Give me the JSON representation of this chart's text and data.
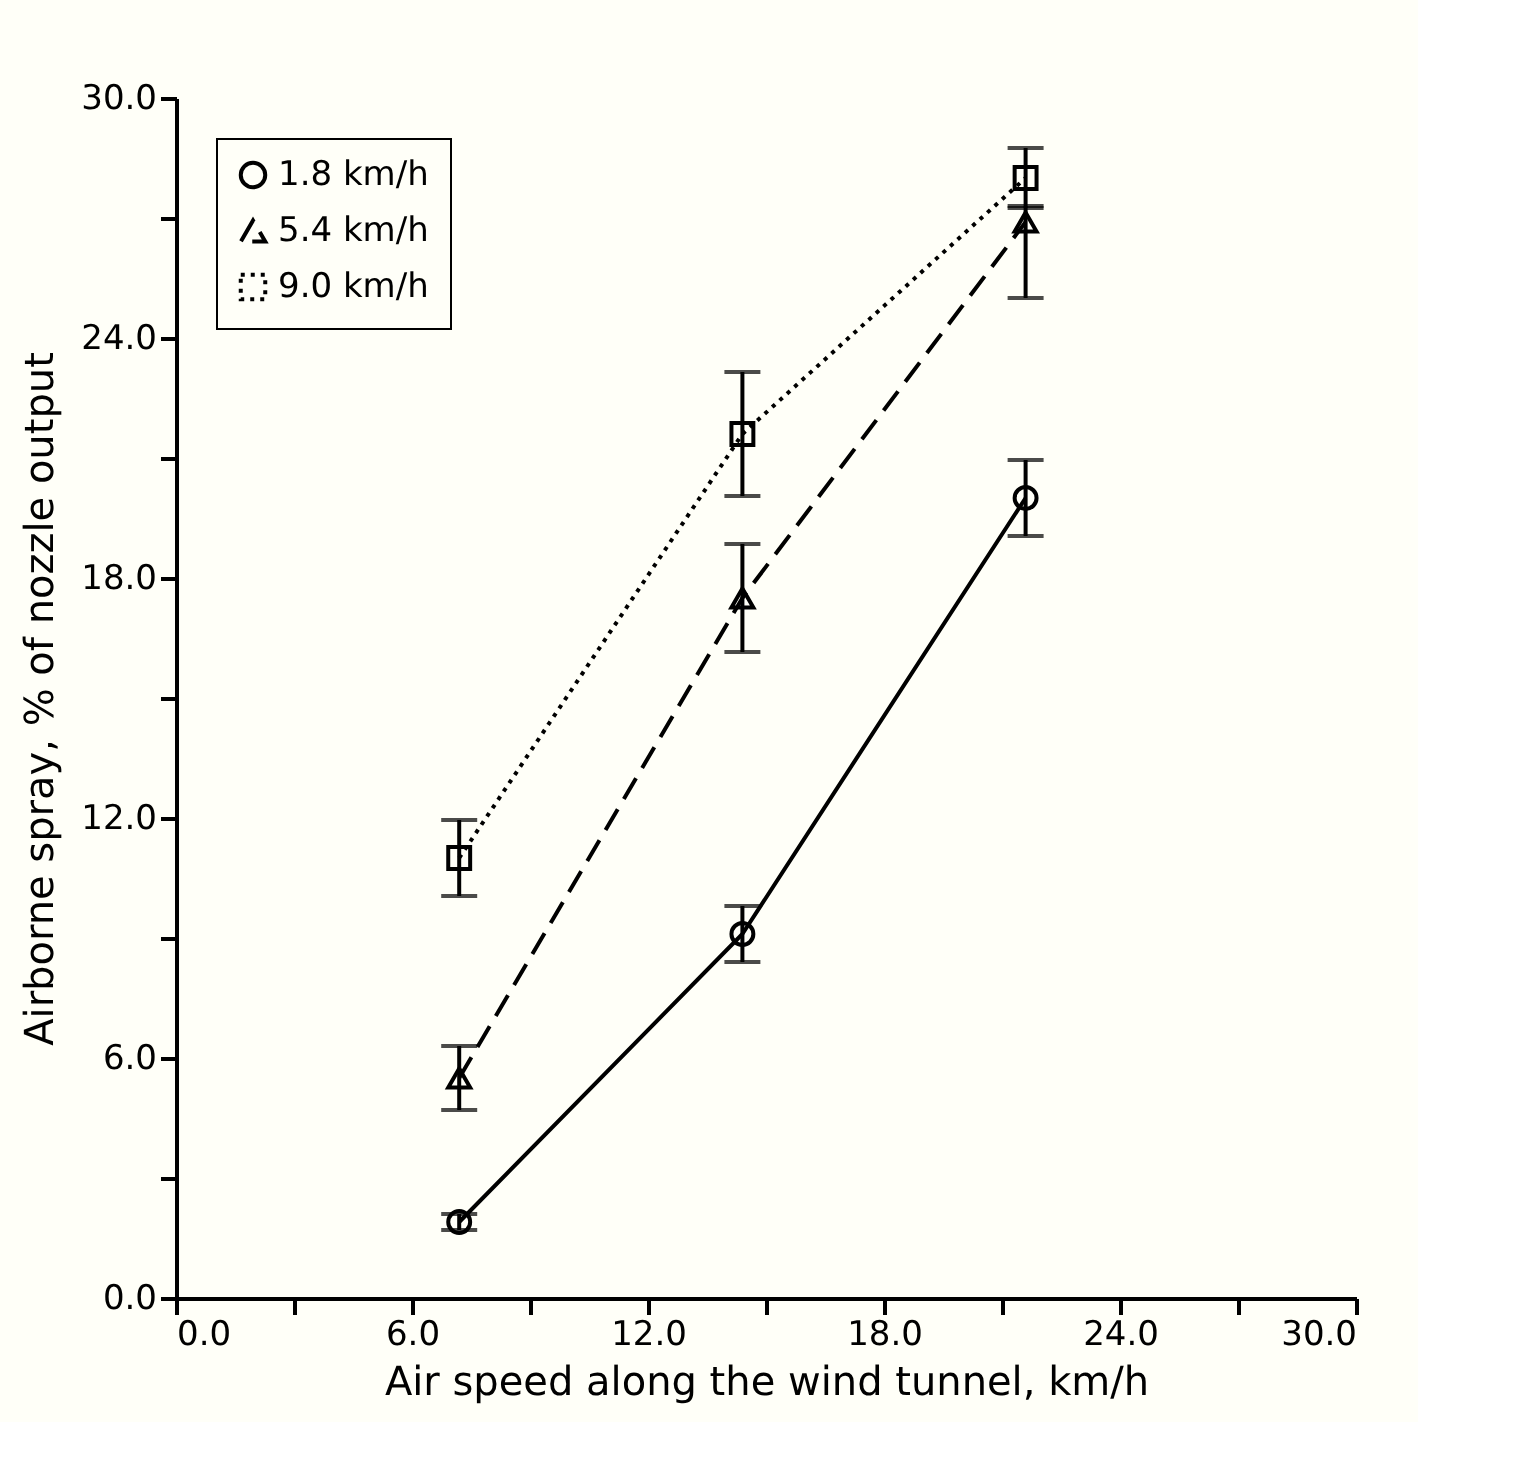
{
  "chart_data": {
    "type": "line",
    "xlabel": "Air speed along the wind tunnel, km/h",
    "ylabel": "Airborne spray, % of nozzle output",
    "x": [
      7.2,
      14.4,
      21.6
    ],
    "series": [
      {
        "name": "1.8 km/h",
        "color": "#000000",
        "marker": "circle",
        "line_style": "solid",
        "values": [
          1.9,
          9.1,
          20.0
        ],
        "errors": [
          0.2,
          0.7,
          0.95
        ]
      },
      {
        "name": "5.4 km/h",
        "color": "#000000",
        "marker": "triangle",
        "line_style": "dashed",
        "values": [
          5.5,
          17.5,
          26.9
        ],
        "errors": [
          0.8,
          1.35,
          [
            25.0,
            27.3
          ]
        ]
      },
      {
        "name": "9.0 km/h",
        "color": "#000000",
        "marker": "square",
        "line_style": "dotted",
        "values": [
          11.0,
          21.6,
          28.0
        ],
        "errors": [
          0.95,
          1.55,
          0.75
        ]
      }
    ],
    "xlim": [
      0,
      30
    ],
    "ylim": [
      0,
      30
    ],
    "xticks": [
      {
        "value": 0,
        "label": "0.0"
      },
      {
        "value": 3,
        "label": null
      },
      {
        "value": 6,
        "label": "6.0"
      },
      {
        "value": 9,
        "label": null
      },
      {
        "value": 12,
        "label": "12.0"
      },
      {
        "value": 15,
        "label": null
      },
      {
        "value": 18,
        "label": "18.0"
      },
      {
        "value": 21,
        "label": null
      },
      {
        "value": 24,
        "label": "24.0"
      },
      {
        "value": 27,
        "label": null
      },
      {
        "value": 30,
        "label": "30.0"
      }
    ],
    "yticks": [
      {
        "value": 0,
        "label": "0.0"
      },
      {
        "value": 3,
        "label": null
      },
      {
        "value": 6,
        "label": "6.0"
      },
      {
        "value": 9,
        "label": null
      },
      {
        "value": 12,
        "label": "12.0"
      },
      {
        "value": 15,
        "label": null
      },
      {
        "value": 18,
        "label": "18.0"
      },
      {
        "value": 21,
        "label": null
      },
      {
        "value": 24,
        "label": "24.0"
      },
      {
        "value": 27,
        "label": null
      },
      {
        "value": 30,
        "label": "30.0"
      }
    ],
    "grid": false,
    "legend": "top left"
  }
}
